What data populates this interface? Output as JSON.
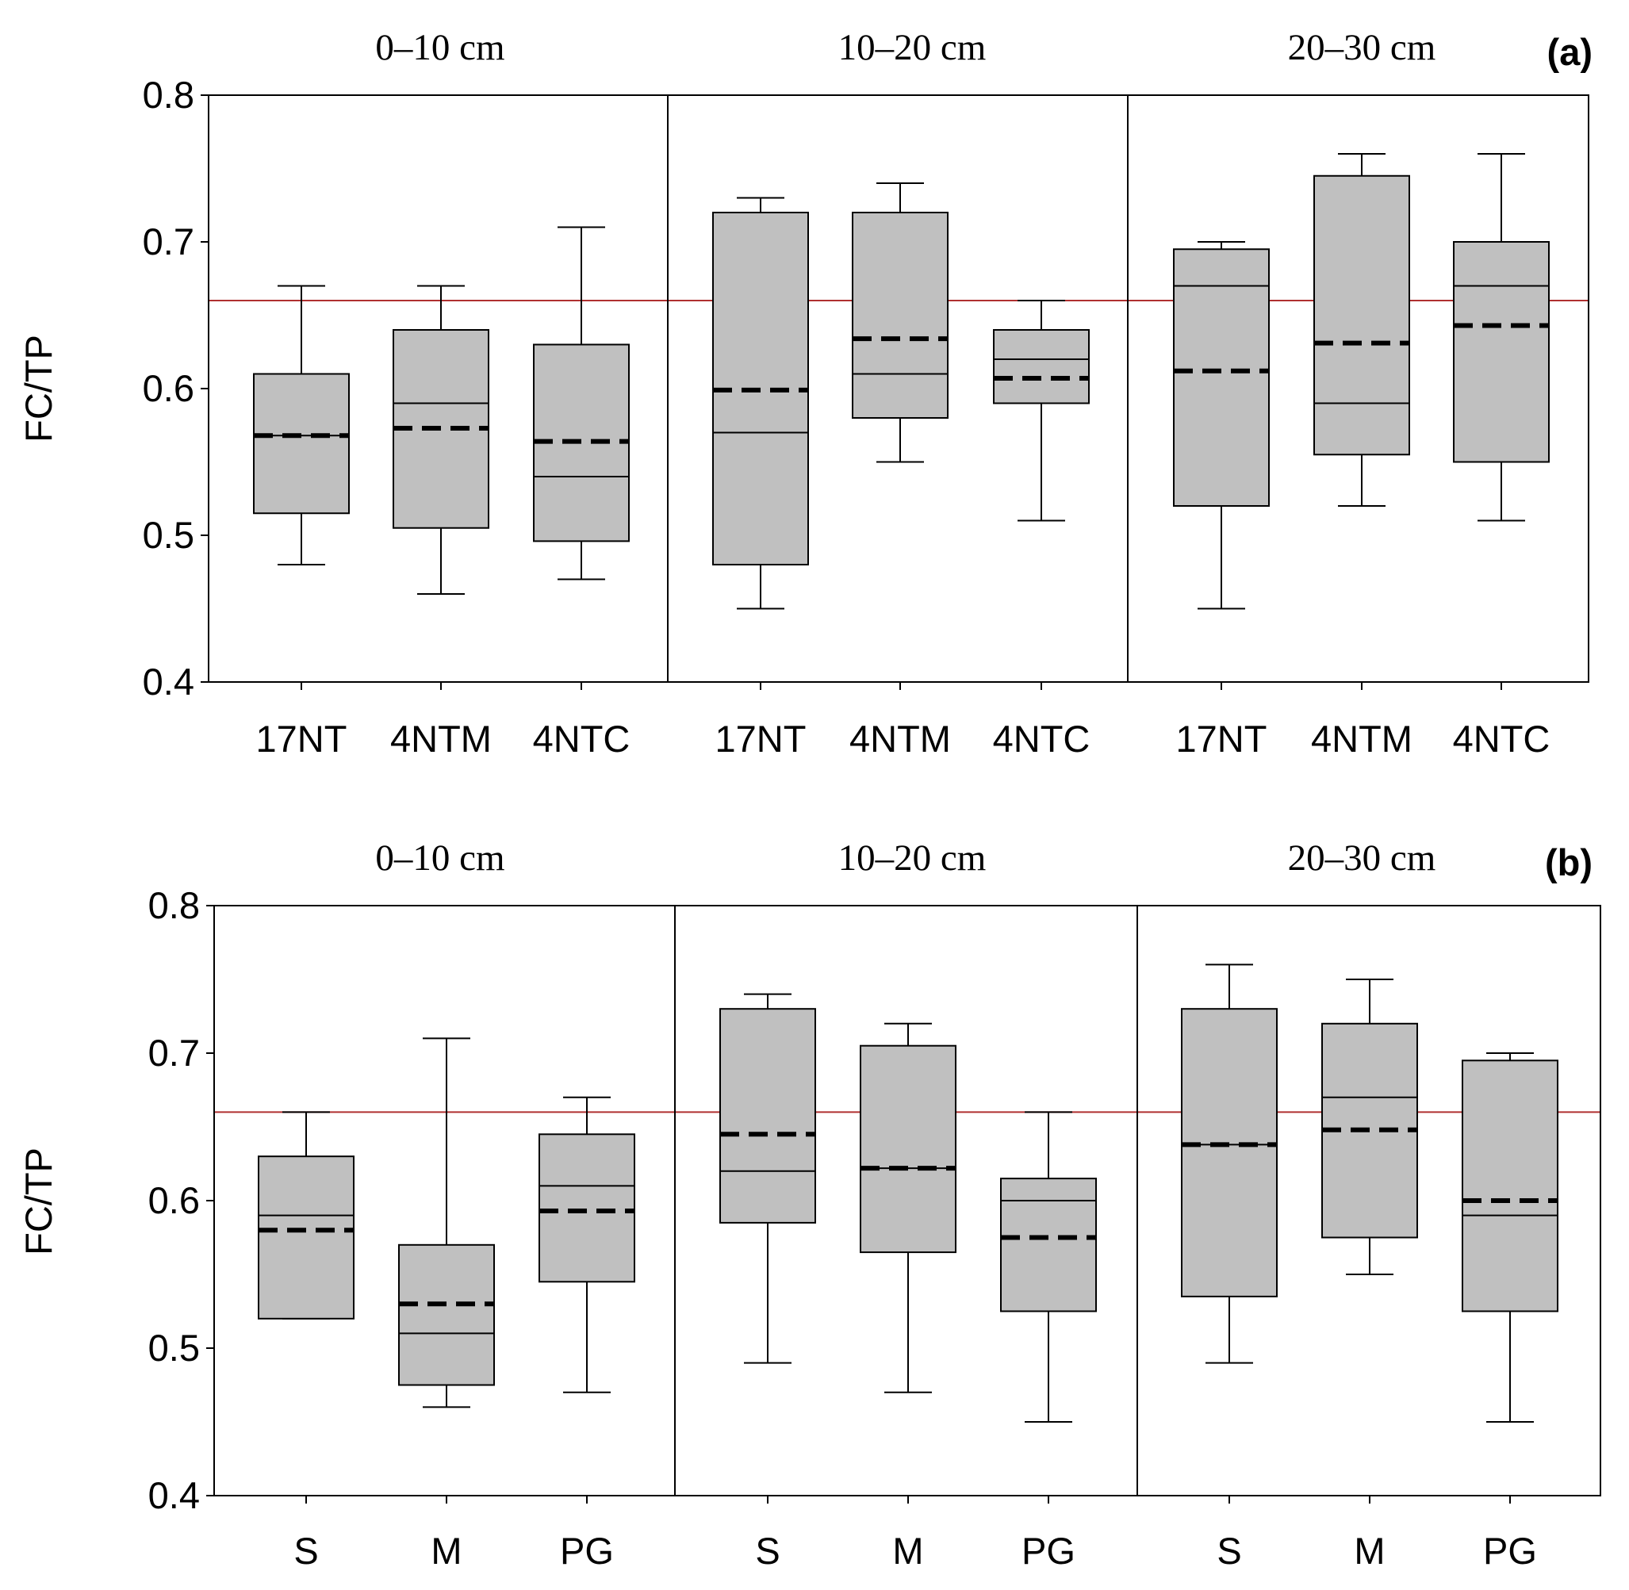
{
  "chart_data": [
    {
      "type": "box",
      "panel_label": "(a)",
      "ylabel": "FC/TP",
      "ylim": [
        0.4,
        0.8
      ],
      "yticks": [
        "0.4",
        "0.5",
        "0.6",
        "0.7",
        "0.8"
      ],
      "reference_line": 0.66,
      "groups": [
        {
          "label": "0–10 cm",
          "boxes": [
            {
              "category": "17NT",
              "whisker_low": 0.48,
              "q1": 0.515,
              "median": 0.568,
              "q3": 0.61,
              "whisker_high": 0.67,
              "mean": 0.568
            },
            {
              "category": "4NTM",
              "whisker_low": 0.46,
              "q1": 0.505,
              "median": 0.59,
              "q3": 0.64,
              "whisker_high": 0.67,
              "mean": 0.573
            },
            {
              "category": "4NTC",
              "whisker_low": 0.47,
              "q1": 0.496,
              "median": 0.54,
              "q3": 0.63,
              "whisker_high": 0.71,
              "mean": 0.564
            }
          ]
        },
        {
          "label": "10–20 cm",
          "boxes": [
            {
              "category": "17NT",
              "whisker_low": 0.45,
              "q1": 0.48,
              "median": 0.57,
              "q3": 0.72,
              "whisker_high": 0.73,
              "mean": 0.599
            },
            {
              "category": "4NTM",
              "whisker_low": 0.55,
              "q1": 0.58,
              "median": 0.61,
              "q3": 0.72,
              "whisker_high": 0.74,
              "mean": 0.634
            },
            {
              "category": "4NTC",
              "whisker_low": 0.51,
              "q1": 0.59,
              "median": 0.62,
              "q3": 0.64,
              "whisker_high": 0.66,
              "mean": 0.607
            }
          ]
        },
        {
          "label": "20–30 cm",
          "boxes": [
            {
              "category": "17NT",
              "whisker_low": 0.45,
              "q1": 0.52,
              "median": 0.67,
              "q3": 0.695,
              "whisker_high": 0.7,
              "mean": 0.612
            },
            {
              "category": "4NTM",
              "whisker_low": 0.52,
              "q1": 0.555,
              "median": 0.59,
              "q3": 0.745,
              "whisker_high": 0.76,
              "mean": 0.631
            },
            {
              "category": "4NTC",
              "whisker_low": 0.51,
              "q1": 0.55,
              "median": 0.67,
              "q3": 0.7,
              "whisker_high": 0.76,
              "mean": 0.643
            }
          ]
        }
      ]
    },
    {
      "type": "box",
      "panel_label": "(b)",
      "ylabel": "FC/TP",
      "ylim": [
        0.4,
        0.8
      ],
      "yticks": [
        "0.4",
        "0.5",
        "0.6",
        "0.7",
        "0.8"
      ],
      "reference_line": 0.66,
      "groups": [
        {
          "label": "0–10 cm",
          "boxes": [
            {
              "category": "S",
              "whisker_low": 0.52,
              "q1": 0.52,
              "median": 0.59,
              "q3": 0.63,
              "whisker_high": 0.66,
              "mean": 0.58
            },
            {
              "category": "M",
              "whisker_low": 0.46,
              "q1": 0.475,
              "median": 0.51,
              "q3": 0.57,
              "whisker_high": 0.71,
              "mean": 0.53
            },
            {
              "category": "PG",
              "whisker_low": 0.47,
              "q1": 0.545,
              "median": 0.61,
              "q3": 0.645,
              "whisker_high": 0.67,
              "mean": 0.593
            }
          ]
        },
        {
          "label": "10–20 cm",
          "boxes": [
            {
              "category": "S",
              "whisker_low": 0.49,
              "q1": 0.585,
              "median": 0.62,
              "q3": 0.73,
              "whisker_high": 0.74,
              "mean": 0.645
            },
            {
              "category": "M",
              "whisker_low": 0.47,
              "q1": 0.565,
              "median": 0.622,
              "q3": 0.705,
              "whisker_high": 0.72,
              "mean": 0.622
            },
            {
              "category": "PG",
              "whisker_low": 0.45,
              "q1": 0.525,
              "median": 0.6,
              "q3": 0.615,
              "whisker_high": 0.66,
              "mean": 0.575
            }
          ]
        },
        {
          "label": "20–30 cm",
          "boxes": [
            {
              "category": "S",
              "whisker_low": 0.49,
              "q1": 0.535,
              "median": 0.638,
              "q3": 0.73,
              "whisker_high": 0.76,
              "mean": 0.638
            },
            {
              "category": "M",
              "whisker_low": 0.55,
              "q1": 0.575,
              "median": 0.67,
              "q3": 0.72,
              "whisker_high": 0.75,
              "mean": 0.648
            },
            {
              "category": "PG",
              "whisker_low": 0.45,
              "q1": 0.525,
              "median": 0.59,
              "q3": 0.695,
              "whisker_high": 0.7,
              "mean": 0.6
            }
          ]
        }
      ]
    }
  ]
}
